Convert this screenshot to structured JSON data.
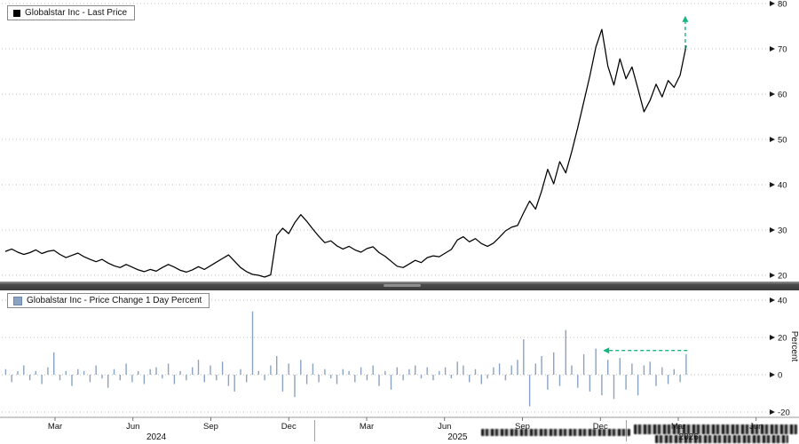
{
  "panels": {
    "price": {
      "legend": "Globalstar Inc - Last Price"
    },
    "pct": {
      "legend": "Globalstar Inc - Price Change 1 Day Percent"
    }
  },
  "colors": {
    "price_line": "#000000",
    "pct_bar": "#8aa3c2",
    "pct_bar_border": "#6b87ab",
    "arrow_green": "#16b57f",
    "gridline": "#bfbfbf",
    "axis_text": "#111111"
  },
  "x_axis": {
    "month_ticks": [
      {
        "label": "Mar",
        "m": 2
      },
      {
        "label": "Jun",
        "m": 5
      },
      {
        "label": "Sep",
        "m": 8
      },
      {
        "label": "Dec",
        "m": 11
      },
      {
        "label": "Mar",
        "m": 14
      },
      {
        "label": "Jun",
        "m": 17
      },
      {
        "label": "Sep",
        "m": 20
      },
      {
        "label": "Dec",
        "m": 23
      },
      {
        "label": "Mar",
        "m": 26
      },
      {
        "label": "Jun",
        "m": 29
      }
    ],
    "year_labels": [
      {
        "label": "2024",
        "m": 5.9
      },
      {
        "label": "2025",
        "m": 17.5
      },
      {
        "label": "2026",
        "m": 26.4
      }
    ],
    "year_separators": [
      12,
      24
    ]
  },
  "chart_data": [
    {
      "type": "line",
      "name": "Globalstar Inc - Last Price",
      "color": "#000000",
      "x_unit": "months since Jan 2024",
      "x_start": 0.1,
      "x_step": 0.2319,
      "y_ticks": [
        80,
        70,
        60,
        50,
        40,
        30,
        20
      ],
      "ylim": [
        18.5,
        81
      ],
      "values": [
        25.3,
        25.8,
        25.1,
        24.6,
        25.0,
        25.6,
        24.8,
        25.3,
        25.5,
        24.6,
        23.9,
        24.4,
        24.9,
        24.1,
        23.5,
        23.0,
        23.5,
        22.7,
        22.1,
        21.7,
        22.4,
        21.8,
        21.2,
        20.8,
        21.3,
        20.9,
        21.7,
        22.4,
        21.8,
        21.1,
        20.7,
        21.2,
        21.9,
        21.3,
        22.1,
        22.9,
        23.7,
        24.5,
        23.1,
        21.7,
        20.8,
        20.2,
        20.0,
        19.6,
        20.1,
        28.8,
        30.4,
        29.2,
        31.6,
        33.4,
        31.9,
        30.2,
        28.6,
        27.2,
        27.6,
        26.5,
        25.8,
        26.4,
        25.6,
        25.1,
        25.9,
        26.3,
        25.0,
        24.2,
        23.1,
        22.0,
        21.7,
        22.5,
        23.3,
        22.8,
        23.9,
        24.3,
        24.1,
        24.9,
        25.7,
        27.8,
        28.5,
        27.4,
        28.1,
        27.0,
        26.4,
        27.1,
        28.4,
        29.8,
        30.6,
        31.0,
        33.8,
        36.4,
        34.6,
        38.6,
        43.4,
        40.2,
        45.1,
        42.6,
        47.3,
        52.6,
        58.3,
        64.0,
        70.4,
        74.3,
        66.2,
        62.0,
        67.8,
        63.4,
        66.0,
        61.2,
        56.1,
        58.6,
        62.2,
        59.4,
        63.0,
        61.5,
        64.2,
        70.6
      ],
      "annotation": {
        "type": "arrow-up",
        "x": 26.27,
        "y_from": 70,
        "y_to": 77.3,
        "color": "#16b57f"
      }
    },
    {
      "type": "bar",
      "name": "Globalstar Inc - Price Change 1 Day Percent",
      "color": "#8aa3c2",
      "ylabel": "Percent",
      "x_unit": "months since Jan 2024",
      "x_start": 0.1,
      "x_step": 0.2319,
      "y_ticks": [
        40,
        20,
        0,
        -20
      ],
      "ylim": [
        -24,
        46
      ],
      "values": [
        3,
        -4,
        2,
        5,
        -3,
        2,
        -5,
        4,
        12,
        -3,
        2,
        -6,
        3,
        2,
        -4,
        5,
        -2,
        -7,
        3,
        -3,
        6,
        -4,
        2,
        -5,
        3,
        4,
        -2,
        6,
        -5,
        2,
        -3,
        4,
        8,
        -4,
        5,
        -3,
        7,
        -6,
        -9,
        3,
        -4,
        34,
        2,
        -3,
        5,
        10,
        -9,
        6,
        -12,
        8,
        -5,
        6,
        -4,
        3,
        -2,
        -5,
        3,
        2,
        -4,
        4,
        -3,
        5,
        -6,
        2,
        -8,
        4,
        -3,
        3,
        5,
        -2,
        4,
        -3,
        2,
        4,
        -2,
        7,
        5,
        -4,
        3,
        -5,
        -2,
        4,
        6,
        -3,
        5,
        8,
        19,
        -17,
        6,
        10,
        -8,
        12,
        -6,
        24,
        5,
        -7,
        11,
        -9,
        14,
        -11,
        8,
        -13,
        9,
        -8,
        6,
        -11,
        5,
        7,
        -6,
        4,
        -5,
        3,
        -4,
        11
      ],
      "annotation": {
        "type": "arrow-left",
        "x_from": 26.35,
        "x_to": 23.1,
        "y": 13,
        "color": "#16b57f"
      }
    }
  ]
}
